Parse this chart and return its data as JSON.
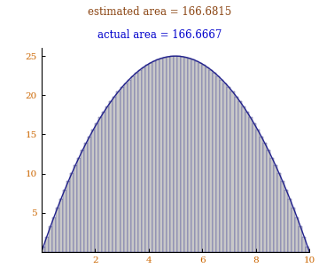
{
  "title_estimated": "estimated area = 166.6815",
  "title_actual": "actual area = 166.6667",
  "title_estimated_color": "#8B4513",
  "title_actual_color": "#0000CC",
  "x_start": 0,
  "x_end": 10,
  "n_rects": 75,
  "bar_facecolor": "#C8C8C8",
  "bar_edgecolor": "#22228B",
  "curve_color": "#22228B",
  "curve_linewidth": 1.0,
  "yticks": [
    5,
    10,
    15,
    20,
    25
  ],
  "xticks": [
    2,
    4,
    6,
    8,
    10
  ],
  "xlim": [
    0,
    10
  ],
  "ylim": [
    0,
    26
  ],
  "title_fontsize": 8.5,
  "tick_fontsize": 7.5,
  "tick_color": "#CC6600",
  "background_color": "#ffffff"
}
